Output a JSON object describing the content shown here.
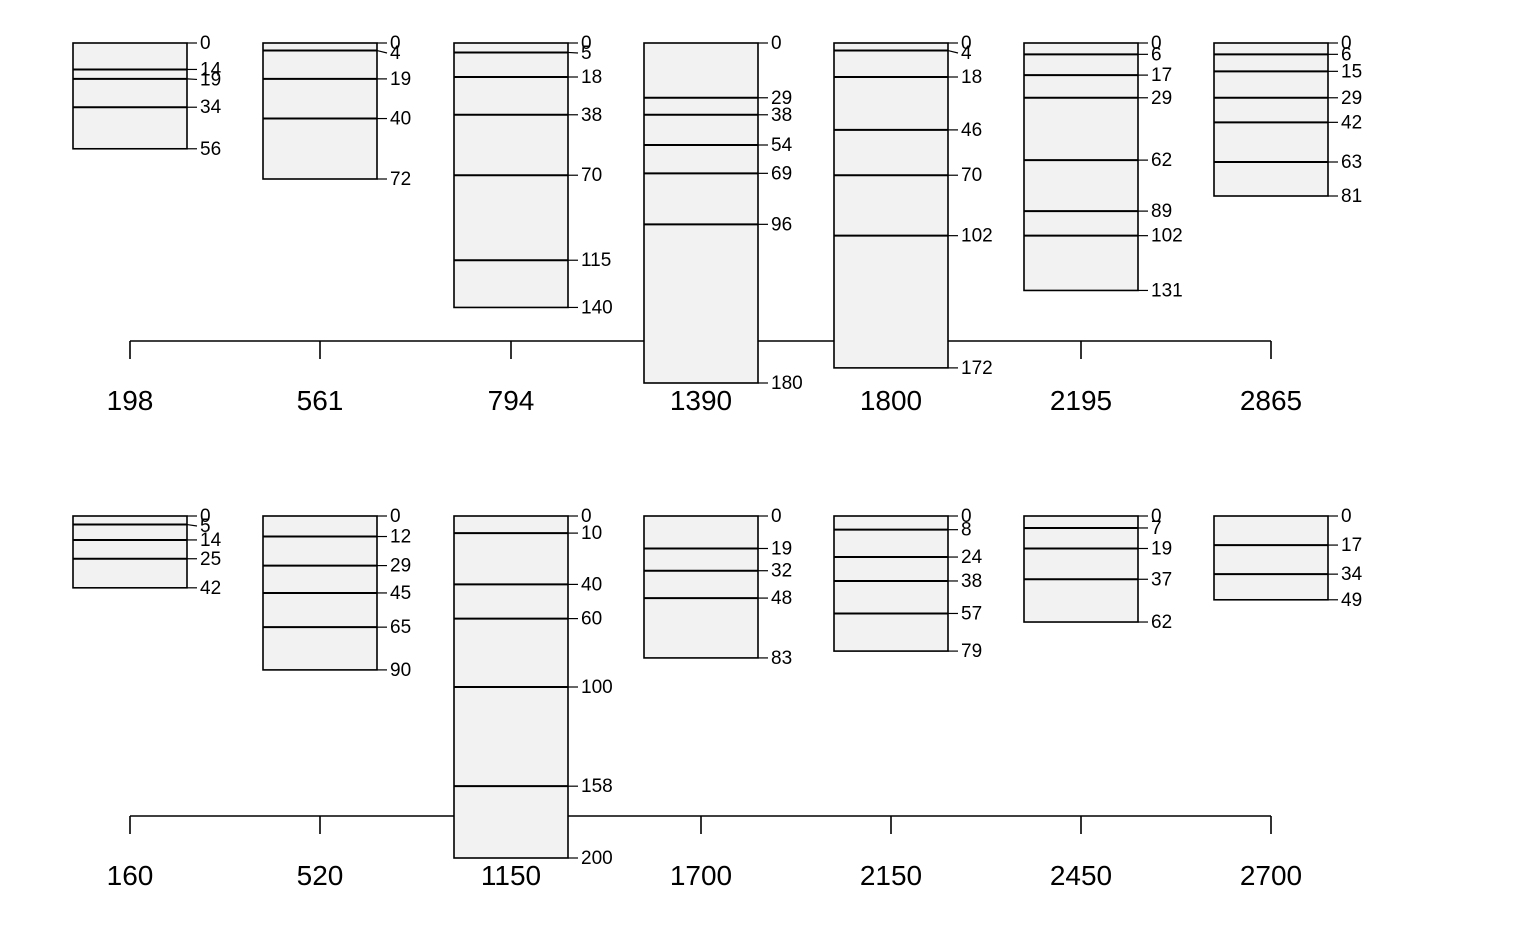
{
  "chart_data": [
    {
      "type": "soil-profile-sketch",
      "title": "",
      "xlabel": "",
      "ylabel": "",
      "fill_color": "#f2f2f2",
      "line_color": "#000000",
      "profiles": [
        {
          "label": "198",
          "depths": [
            0,
            14,
            19,
            34,
            56
          ]
        },
        {
          "label": "561",
          "depths": [
            0,
            4,
            19,
            40,
            72
          ]
        },
        {
          "label": "794",
          "depths": [
            0,
            5,
            18,
            38,
            70,
            115,
            140
          ]
        },
        {
          "label": "1390",
          "depths": [
            0,
            29,
            38,
            54,
            69,
            96,
            180
          ]
        },
        {
          "label": "1800",
          "depths": [
            0,
            4,
            18,
            46,
            70,
            102,
            172
          ]
        },
        {
          "label": "2195",
          "depths": [
            0,
            6,
            17,
            29,
            62,
            89,
            102,
            131
          ]
        },
        {
          "label": "2865",
          "depths": [
            0,
            6,
            15,
            29,
            42,
            63,
            81
          ]
        }
      ]
    },
    {
      "type": "soil-profile-sketch",
      "title": "",
      "xlabel": "",
      "ylabel": "",
      "fill_color": "#f2f2f2",
      "line_color": "#000000",
      "profiles": [
        {
          "label": "160",
          "depths": [
            0,
            5,
            14,
            25,
            42
          ]
        },
        {
          "label": "520",
          "depths": [
            0,
            12,
            29,
            45,
            65,
            90
          ]
        },
        {
          "label": "1150",
          "depths": [
            0,
            10,
            40,
            60,
            100,
            158,
            200
          ]
        },
        {
          "label": "1700",
          "depths": [
            0,
            19,
            32,
            48,
            83
          ]
        },
        {
          "label": "2150",
          "depths": [
            0,
            8,
            24,
            38,
            57,
            79
          ]
        },
        {
          "label": "2450",
          "depths": [
            0,
            7,
            19,
            37,
            62
          ]
        },
        {
          "label": "2700",
          "depths": [
            0,
            17,
            34,
            49
          ]
        }
      ]
    }
  ]
}
